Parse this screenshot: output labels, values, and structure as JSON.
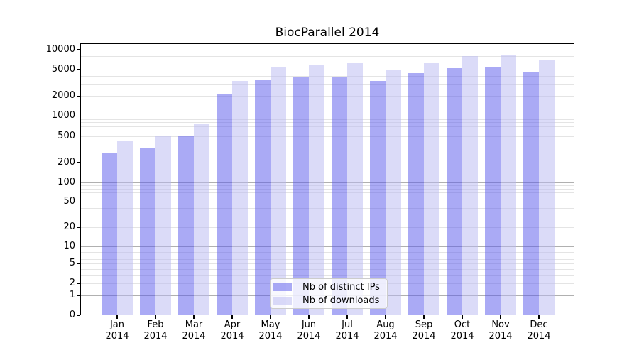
{
  "chart_data": {
    "type": "bar",
    "title": "BiocParallel 2014",
    "categories": [
      "Jan",
      "Feb",
      "Mar",
      "Apr",
      "May",
      "Jun",
      "Jul",
      "Aug",
      "Sep",
      "Oct",
      "Nov",
      "Dec"
    ],
    "year_label": "2014",
    "series": [
      {
        "name": "Nb of distinct IPs",
        "color": "#5555eb",
        "alpha": 0.5,
        "values": [
          275,
          325,
          490,
          2150,
          3500,
          3850,
          3800,
          3350,
          4400,
          5300,
          5500,
          4700
        ]
      },
      {
        "name": "Nb of downloads",
        "color": "#b7b7f1",
        "alpha": 0.5,
        "values": [
          420,
          510,
          780,
          3400,
          5600,
          5750,
          6200,
          4900,
          6250,
          7950,
          8400,
          7100
        ]
      }
    ],
    "xlabel": "",
    "ylabel": "",
    "yscale": "log1p",
    "ylim": [
      0,
      12470
    ],
    "yticks": [
      0,
      1,
      2,
      5,
      10,
      20,
      50,
      100,
      200,
      500,
      1000,
      2000,
      5000,
      10000
    ],
    "major_gridlines": [
      1,
      10,
      100,
      1000,
      10000
    ],
    "grid": true,
    "legend_position": "lower center",
    "colors": {
      "minor_grid": "#e4e4e4",
      "major_grid": "#b0b0b0",
      "axis": "#000000",
      "background": "#ffffff"
    }
  }
}
